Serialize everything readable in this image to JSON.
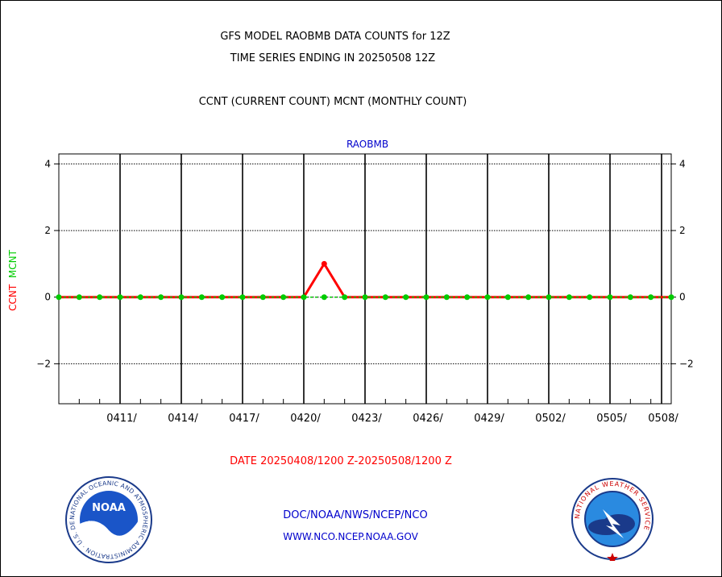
{
  "titles": {
    "line1": "GFS MODEL RAOBMB DATA COUNTS for 12Z",
    "line2": "TIME SERIES ENDING IN 20250508 12Z",
    "subtitle": "CCNT (CURRENT COUNT) MCNT (MONTHLY COUNT)",
    "panel": "RAOBMB"
  },
  "y_axis_label": {
    "ccnt": "CCNT",
    "mcnt": "MCNT"
  },
  "date_range": "DATE 20250408/1200 Z-20250508/1200 Z",
  "footer": {
    "line1": "DOC/NOAA/NWS/NCEP/NCO",
    "line2": "WWW.NCO.NCEP.NOAA.GOV"
  },
  "logos": {
    "noaa_center": "NOAA",
    "noaa_ring": "NATIONAL OCEANIC AND ATMOSPHERIC ADMINISTRATION · U.S. DEPARTMENT OF COMMERCE",
    "nws_ring": "NATIONAL WEATHER SERVICE"
  },
  "chart_data": {
    "type": "line",
    "title": "GFS MODEL RAOBMB DATA COUNTS for 12Z",
    "subtitle": "TIME SERIES ENDING IN 20250508 12Z",
    "xlabel": "DATE 20250408/1200 Z-20250508/1200 Z",
    "ylabel": "CCNT MCNT",
    "ylim": [
      -3.2,
      4.3
    ],
    "yticks": [
      -2,
      0,
      2,
      4
    ],
    "ytick_labels": [
      "−2",
      "0",
      "2",
      "4"
    ],
    "xticks_day": [
      3,
      6,
      9,
      12,
      15,
      18,
      21,
      24,
      27,
      30
    ],
    "xtick_labels": [
      "0411/",
      "0414/",
      "0417/",
      "0420/",
      "0423/",
      "0426/",
      "0429/",
      "0502/",
      "0505/",
      "0508/"
    ],
    "x_days": [
      0,
      1,
      2,
      3,
      4,
      5,
      6,
      7,
      8,
      9,
      10,
      11,
      12,
      13,
      14,
      15,
      16,
      17,
      18,
      19,
      20,
      21,
      22,
      23,
      24,
      25,
      26,
      27,
      28,
      29,
      30
    ],
    "series": [
      {
        "name": "CCNT",
        "color": "#ff0000",
        "values": [
          0,
          0,
          0,
          0,
          0,
          0,
          0,
          0,
          0,
          0,
          0,
          0,
          0,
          1,
          0,
          0,
          0,
          0,
          0,
          0,
          0,
          0,
          0,
          0,
          0,
          0,
          0,
          0,
          0,
          0,
          0
        ]
      },
      {
        "name": "MCNT",
        "color": "#00cc00",
        "values": [
          0,
          0,
          0,
          0,
          0,
          0,
          0,
          0,
          0,
          0,
          0,
          0,
          0,
          0,
          0,
          0,
          0,
          0,
          0,
          0,
          0,
          0,
          0,
          0,
          0,
          0,
          0,
          0,
          0,
          0,
          0
        ]
      }
    ],
    "grid": true
  }
}
